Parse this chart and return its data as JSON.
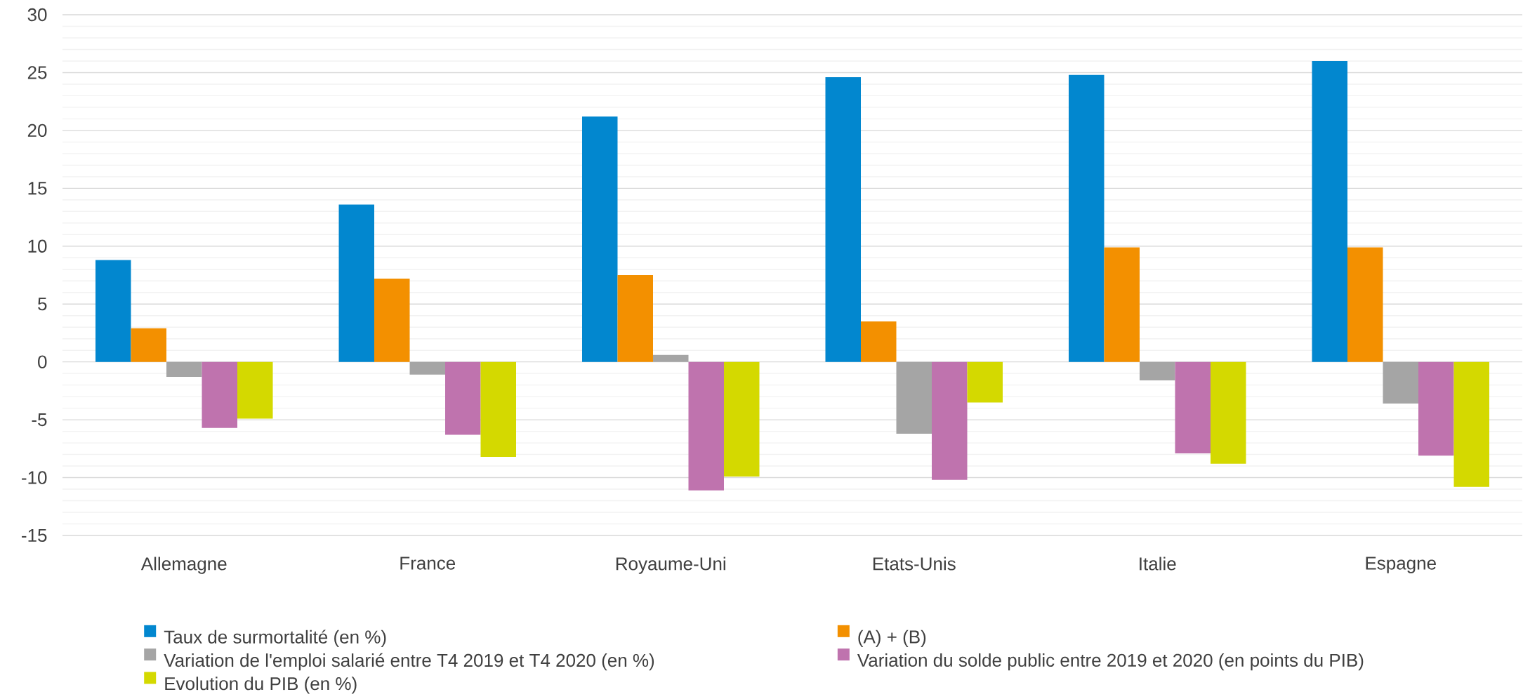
{
  "chart_data": {
    "type": "bar",
    "categories": [
      "Allemagne",
      "France",
      "Royaume-Uni",
      "Etats-Unis",
      "Italie",
      "Espagne"
    ],
    "series": [
      {
        "name": "Taux de surmortalité (en %)",
        "color": "#0287cf",
        "values": [
          8.8,
          13.6,
          21.2,
          24.6,
          24.8,
          26.0
        ]
      },
      {
        "name": "(A) + (B)",
        "color": "#f39000",
        "values": [
          2.9,
          7.2,
          7.5,
          3.5,
          9.9,
          9.9
        ]
      },
      {
        "name": "Variation de l'emploi salarié entre T4 2019 et T4 2020 (en %)",
        "color": "#a5a5a5",
        "values": [
          -1.3,
          -1.1,
          0.6,
          -6.2,
          -1.6,
          -3.6
        ]
      },
      {
        "name": "Variation du solde public entre 2019 et 2020 (en points du PIB)",
        "color": "#bf73ae",
        "values": [
          -5.7,
          -6.3,
          -11.1,
          -10.2,
          -7.9,
          -8.1
        ]
      },
      {
        "name": "Evolution du PIB (en %)",
        "color": "#d4d900",
        "values": [
          -4.9,
          -8.2,
          -9.9,
          -3.5,
          -8.8,
          -10.8
        ]
      }
    ],
    "ylim": [
      -15,
      30
    ],
    "yticks": [
      -15,
      -10,
      -5,
      0,
      5,
      10,
      15,
      20,
      25,
      30
    ],
    "grid": "y",
    "legend": "bottom"
  }
}
